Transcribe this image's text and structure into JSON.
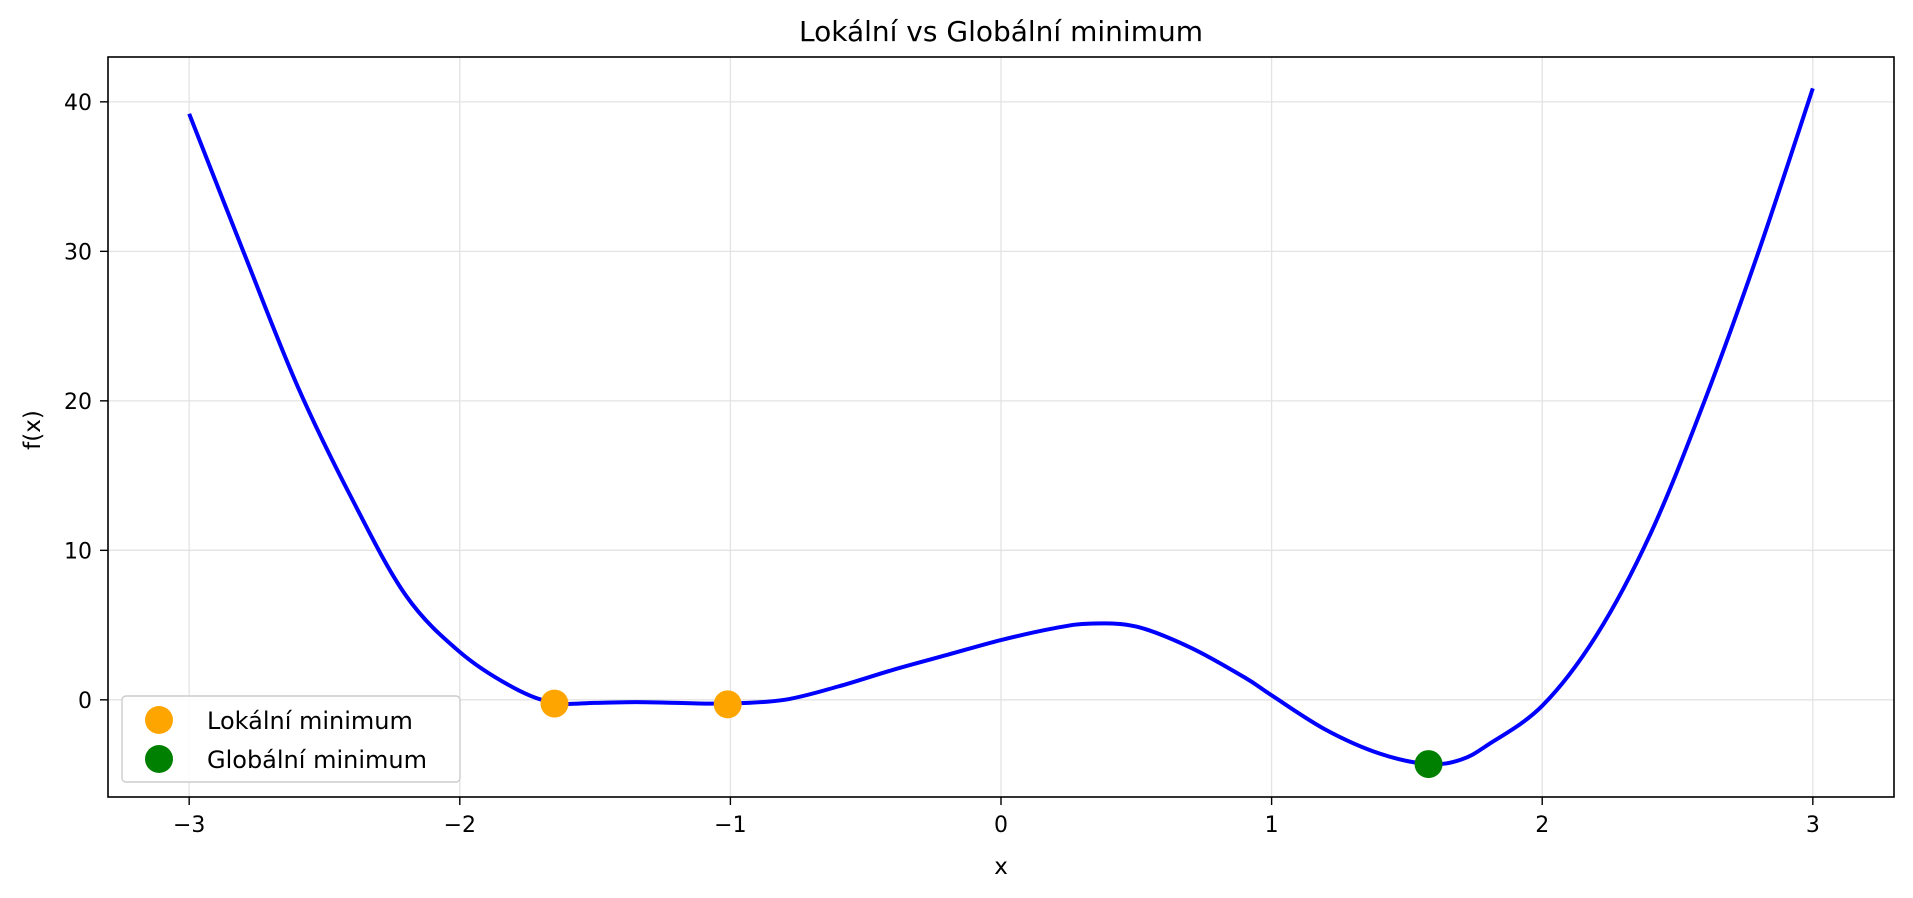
{
  "chart_data": {
    "type": "line",
    "title": "Lokální vs Globální minimum",
    "xlabel": "x",
    "ylabel": "f(x)",
    "xlim": [
      -3.3,
      3.3
    ],
    "ylim": [
      -6.5,
      43
    ],
    "xticks": [
      -3,
      -2,
      -1,
      0,
      1,
      2,
      3
    ],
    "xtick_labels": [
      "−3",
      "−2",
      "−1",
      "0",
      "1",
      "2",
      "3"
    ],
    "yticks": [
      0,
      10,
      20,
      30,
      40
    ],
    "ytick_labels": [
      "0",
      "10",
      "20",
      "30",
      "40"
    ],
    "grid": true,
    "legend_position": "lower-left",
    "series": [
      {
        "kind": "line",
        "color": "#0000ff",
        "x": [
          -3.0,
          -2.8,
          -2.6,
          -2.4,
          -2.2,
          -2.0,
          -1.8,
          -1.65,
          -1.5,
          -1.35,
          -1.2,
          -1.01,
          -0.8,
          -0.6,
          -0.4,
          -0.2,
          0.0,
          0.2,
          0.33,
          0.5,
          0.7,
          0.9,
          1.0,
          1.2,
          1.4,
          1.58,
          1.7,
          1.8,
          2.0,
          2.2,
          2.4,
          2.6,
          2.8,
          3.0
        ],
        "y": [
          39.2,
          30.0,
          21.0,
          13.5,
          7.0,
          3.2,
          0.8,
          -0.2,
          -0.2,
          -0.15,
          -0.2,
          -0.25,
          0.0,
          0.9,
          2.0,
          3.0,
          4.0,
          4.8,
          5.1,
          4.9,
          3.5,
          1.5,
          0.3,
          -2.0,
          -3.6,
          -4.3,
          -4.0,
          -3.0,
          -0.4,
          4.3,
          11.1,
          20.0,
          30.0,
          40.9
        ]
      },
      {
        "kind": "scatter",
        "name": "Lokální minimum",
        "color": "#ffa500",
        "x": [
          -1.65,
          -1.01
        ],
        "y": [
          -0.25,
          -0.3
        ]
      },
      {
        "kind": "scatter",
        "name": "Globální minimum",
        "color": "#008000",
        "x": [
          1.58
        ],
        "y": [
          -4.3
        ]
      }
    ]
  }
}
